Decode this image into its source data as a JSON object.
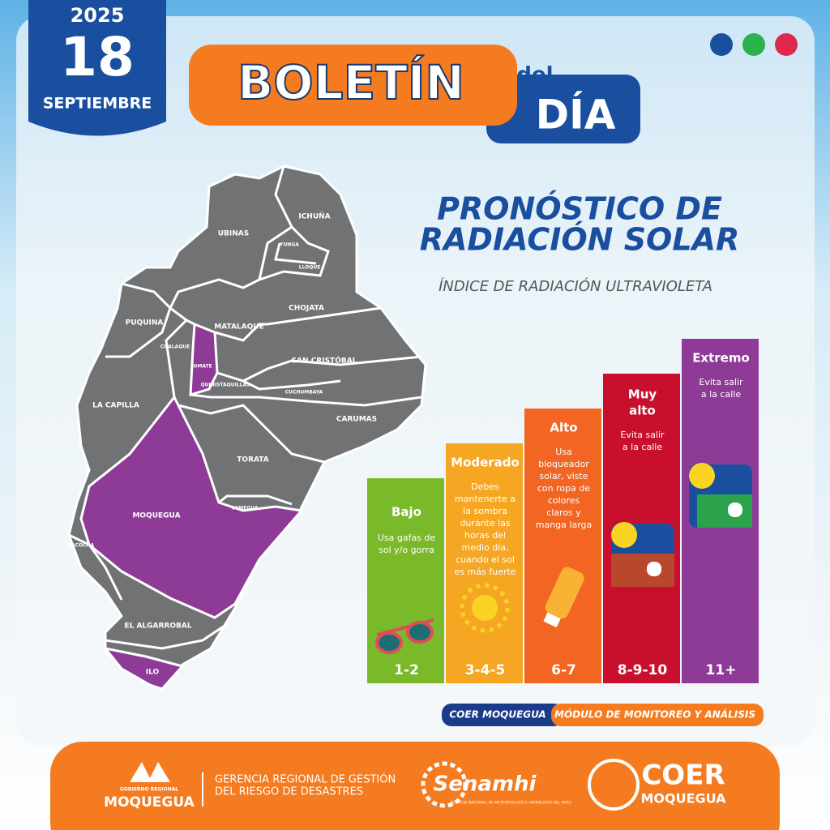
{
  "date": {
    "year": "2025",
    "day": "18",
    "month": "SEPTIEMBRE"
  },
  "header": {
    "title": "BOLETÍN",
    "del": "del",
    "dia": "DÍA"
  },
  "section": {
    "title_line1": "PRONÓSTICO DE",
    "title_line2": "RADIACIÓN SOLAR",
    "subtitle": "ÍNDICE DE RADIACIÓN ULTRAVIOLETA"
  },
  "map": {
    "districts": [
      "UBINAS",
      "ICHUÑA",
      "YUNGA",
      "LLOQUE",
      "CHOJATA",
      "PUQUINA",
      "MATALAQUE",
      "COALAQUE",
      "OMATE",
      "SAN CRISTÓBAL",
      "QUINISTAQUILLAS",
      "CUCHUMBAYA",
      "LA CAPILLA",
      "CARUMAS",
      "TORATA",
      "MOQUEGUA",
      "SAMEGUA",
      "PACOCHA",
      "EL ALGARROBAL",
      "ILO"
    ]
  },
  "uv_levels": [
    {
      "level": [
        "Bajo"
      ],
      "advice": [
        "Usa gafas de",
        "sol y/o gorra"
      ],
      "range": "1-2"
    },
    {
      "level": [
        "Moderado"
      ],
      "advice": [
        "Debes",
        "mantenerte a",
        "la sombra",
        "durante las",
        "horas del",
        "medio día,",
        "cuando el sol",
        "es más fuerte"
      ],
      "range": "3-4-5"
    },
    {
      "level": [
        "Alto"
      ],
      "advice": [
        "Usa",
        "bloqueador",
        "solar, viste",
        "con ropa de",
        "colores",
        "claros y",
        "manga larga"
      ],
      "range": "6-7"
    },
    {
      "level": [
        "Muy",
        "alto"
      ],
      "advice": [
        "Evita salir",
        "a la calle"
      ],
      "range": "8-9-10"
    },
    {
      "level": [
        "Extremo"
      ],
      "advice": [
        "Evita salir",
        "a la calle"
      ],
      "range": "11+"
    }
  ],
  "credit": {
    "org": "COER MOQUEGUA",
    "unit": "MÓDULO DE MONITOREO Y ANÁLISIS"
  },
  "footer": {
    "gob_small": "GOBIERNO REGIONAL",
    "gob": "MOQUEGUA",
    "gerencia_line1": "GERENCIA REGIONAL DE GESTIÓN",
    "gerencia_line2": "DEL RIESGO DE DESASTRES",
    "senamhi": "Senamhi",
    "senamhi_sub": "SERVICIO NACIONAL DE METEOROLOGÍA E HIDROLOGÍA DEL PERÚ",
    "coer": "COER",
    "coer_sub": "MOQUEGUA"
  }
}
